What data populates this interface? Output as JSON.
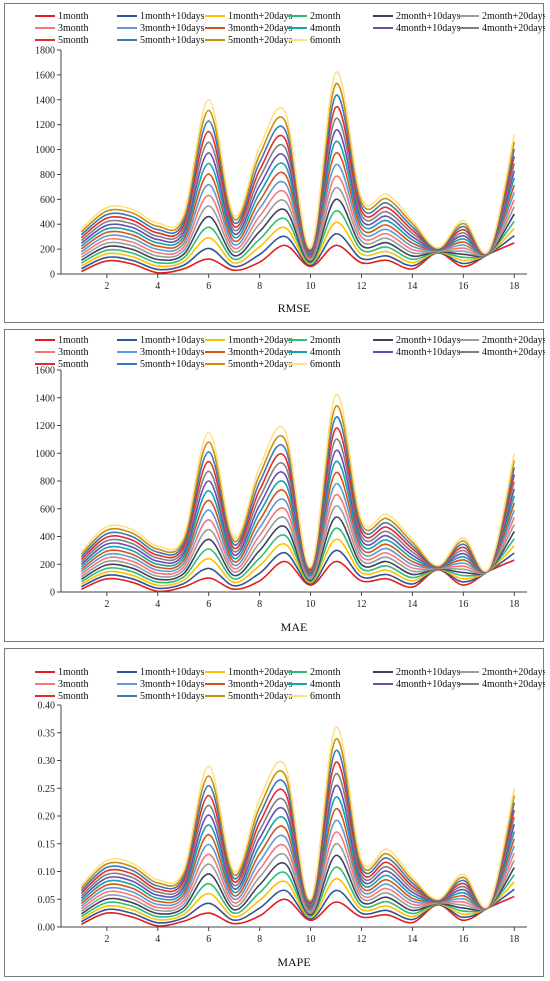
{
  "series_names": [
    "1month",
    "1month+10days",
    "1month+20days",
    "2month",
    "2month+10days",
    "2month+20days",
    "3month",
    "3month+10days",
    "3month+20days",
    "4month",
    "4month+10days",
    "4month+20days",
    "5month",
    "5month+10days",
    "5month+20days",
    "6month"
  ],
  "series_colors": [
    "#e02020",
    "#2f5597",
    "#ffc000",
    "#2ebd73",
    "#404060",
    "#9b9b9b",
    "#f47878",
    "#5b9bd5",
    "#d4541a",
    "#17a2a8",
    "#6a4db5",
    "#808080",
    "#e52b2b",
    "#3a78b8",
    "#c9900a",
    "#ffe08a"
  ],
  "chart_data": [
    {
      "type": "line",
      "xlabel": "RMSE",
      "x": [
        1,
        2,
        3,
        4,
        5,
        6,
        7,
        8,
        9,
        10,
        11,
        12,
        13,
        14,
        15,
        16,
        17,
        18
      ],
      "xticks": [
        2,
        4,
        6,
        8,
        10,
        12,
        14,
        16,
        18
      ],
      "xlim": [
        0.2,
        18.5
      ],
      "ylim": [
        0,
        1800
      ],
      "yticks": [
        0,
        200,
        400,
        600,
        800,
        1000,
        1200,
        1400,
        1600,
        1800
      ],
      "ytick_labels": [
        "0",
        "200",
        "400",
        "600",
        "800",
        "1000",
        "1200",
        "1400",
        "1600",
        "1800"
      ],
      "low": [
        20,
        105,
        80,
        10,
        40,
        120,
        30,
        95,
        230,
        60,
        230,
        90,
        110,
        40,
        170,
        60,
        160,
        250
      ],
      "high": [
        360,
        535,
        520,
        410,
        470,
        1400,
        470,
        1020,
        1300,
        210,
        1620,
        610,
        640,
        430,
        210,
        430,
        190,
        1120
      ]
    },
    {
      "type": "line",
      "xlabel": "MAE",
      "x": [
        1,
        2,
        3,
        4,
        5,
        6,
        7,
        8,
        9,
        10,
        11,
        12,
        13,
        14,
        15,
        16,
        17,
        18
      ],
      "xticks": [
        2,
        4,
        6,
        8,
        10,
        12,
        14,
        16,
        18
      ],
      "xlim": [
        0.2,
        18.5
      ],
      "ylim": [
        0,
        1600
      ],
      "yticks": [
        0,
        200,
        400,
        600,
        800,
        1000,
        1200,
        1400,
        1600
      ],
      "ytick_labels": [
        "0",
        "200",
        "400",
        "600",
        "800",
        "1000",
        "1200",
        "1400",
        "1600"
      ],
      "low": [
        20,
        95,
        70,
        5,
        35,
        100,
        20,
        80,
        220,
        50,
        220,
        80,
        95,
        35,
        160,
        50,
        150,
        230
      ],
      "high": [
        290,
        470,
        450,
        330,
        390,
        1150,
        390,
        900,
        1160,
        180,
        1420,
        520,
        560,
        380,
        190,
        390,
        170,
        1000
      ]
    },
    {
      "type": "line",
      "xlabel": "MAPE",
      "x": [
        1,
        2,
        3,
        4,
        5,
        6,
        7,
        8,
        9,
        10,
        11,
        12,
        13,
        14,
        15,
        16,
        17,
        18
      ],
      "xticks": [
        2,
        4,
        6,
        8,
        10,
        12,
        14,
        16,
        18
      ],
      "xlim": [
        0.2,
        18.5
      ],
      "ylim": [
        0,
        0.4
      ],
      "yticks": [
        0,
        0.05,
        0.1,
        0.15,
        0.2,
        0.25,
        0.3,
        0.35,
        0.4
      ],
      "ytick_labels": [
        "0.00",
        "0.05",
        "0.10",
        "0.15",
        "0.20",
        "0.25",
        "0.30",
        "0.35",
        "0.40"
      ],
      "low": [
        0.005,
        0.025,
        0.018,
        0.002,
        0.01,
        0.025,
        0.006,
        0.02,
        0.05,
        0.012,
        0.045,
        0.018,
        0.022,
        0.008,
        0.04,
        0.012,
        0.035,
        0.055
      ],
      "high": [
        0.075,
        0.12,
        0.115,
        0.085,
        0.1,
        0.29,
        0.1,
        0.23,
        0.29,
        0.05,
        0.36,
        0.12,
        0.14,
        0.09,
        0.05,
        0.095,
        0.04,
        0.25
      ]
    }
  ]
}
